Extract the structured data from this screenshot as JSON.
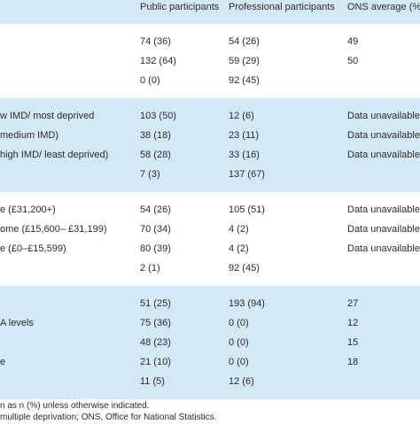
{
  "table": {
    "header": [
      "Public participants",
      "Professional participants",
      "ONS average (%)"
    ],
    "sections": [
      {
        "rows": [
          {
            "cells": [
              "74 (36)",
              "54 (26)",
              "49"
            ]
          },
          {
            "cells": [
              "132 (64)",
              "59 (29)",
              "50"
            ]
          },
          {
            "cells": [
              "0 (0)",
              "92 (45)"
            ]
          }
        ]
      },
      {
        "rows": [
          {
            "label": "w IMD/ most deprived",
            "cells": [
              "103 (50)",
              "12 (6)",
              "Data unavailable"
            ]
          },
          {
            "label": "medium IMD)",
            "cells": [
              "38 (18)",
              "23 (11)",
              "Data unavailable"
            ]
          },
          {
            "label": "high IMD/ least deprived)",
            "cells": [
              "58 (28)",
              "33 (16)",
              "Data unavailable"
            ]
          },
          {
            "cells": [
              "7 (3)",
              "137 (67)"
            ]
          }
        ]
      },
      {
        "rows": [
          {
            "label": "e (£31,200+)",
            "cells": [
              "54 (26)",
              "105 (51)",
              "Data unavailable"
            ]
          },
          {
            "label": "ome (£15,600– £31,199)",
            "cells": [
              "70 (34)",
              "4 (2)",
              "Data unavailable"
            ]
          },
          {
            "label": "e (£0–£15,599)",
            "cells": [
              "80 (39)",
              "4 (2)",
              "Data unavailable"
            ]
          },
          {
            "cells": [
              "2 (1)",
              "92 (45)"
            ]
          }
        ]
      },
      {
        "rows": [
          {
            "cells": [
              "51 (25)",
              "193 (94)",
              "27"
            ]
          },
          {
            "label": "A levels",
            "cells": [
              "75 (36)",
              "0 (0)",
              "12"
            ]
          },
          {
            "cells": [
              "48 (23)",
              "0 (0)",
              "15"
            ]
          },
          {
            "label": "e",
            "cells": [
              "21 (10)",
              "0 (0)",
              "18"
            ]
          },
          {
            "cells": [
              "11 (5)",
              "12 (6)"
            ]
          }
        ]
      }
    ],
    "footnotes": [
      "n as n (%) unless otherwise indicated.",
      "multiple deprivation; ONS, Office for National Statistics."
    ]
  }
}
